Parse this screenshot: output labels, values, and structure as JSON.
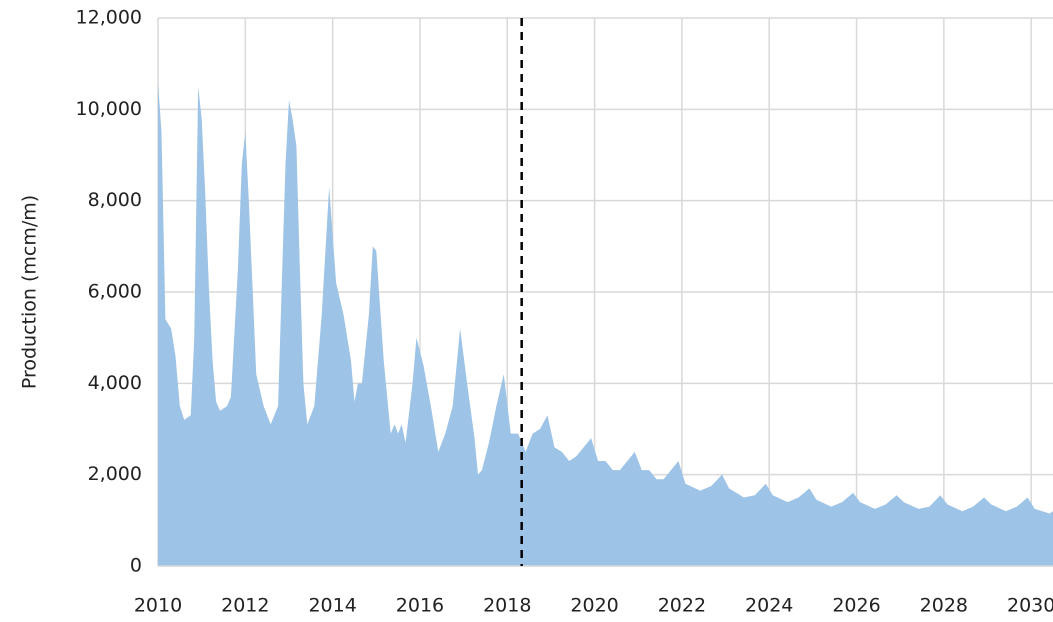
{
  "chart_data": {
    "type": "area",
    "y_label": "Production (mcm/m)",
    "x": [
      2010.0,
      2010.08,
      2010.17,
      2010.3,
      2010.4,
      2010.5,
      2010.6,
      2010.75,
      2010.83,
      2010.92,
      2011.0,
      2011.08,
      2011.17,
      2011.25,
      2011.33,
      2011.42,
      2011.58,
      2011.67,
      2011.83,
      2011.92,
      2012.0,
      2012.08,
      2012.17,
      2012.25,
      2012.42,
      2012.58,
      2012.75,
      2012.83,
      2012.92,
      2013.0,
      2013.08,
      2013.17,
      2013.25,
      2013.33,
      2013.42,
      2013.58,
      2013.75,
      2013.92,
      2014.08,
      2014.25,
      2014.42,
      2014.5,
      2014.58,
      2014.67,
      2014.83,
      2014.92,
      2015.0,
      2015.17,
      2015.33,
      2015.42,
      2015.5,
      2015.58,
      2015.67,
      2015.83,
      2015.92,
      2016.08,
      2016.25,
      2016.42,
      2016.58,
      2016.75,
      2016.92,
      2017.08,
      2017.25,
      2017.33,
      2017.42,
      2017.58,
      2017.75,
      2017.92,
      2018.08,
      2018.25,
      2018.42,
      2018.58,
      2018.75,
      2018.92,
      2019.08,
      2019.25,
      2019.42,
      2019.58,
      2019.75,
      2019.92,
      2020.08,
      2020.25,
      2020.42,
      2020.58,
      2020.75,
      2020.92,
      2021.08,
      2021.25,
      2021.42,
      2021.58,
      2021.75,
      2021.92,
      2022.08,
      2022.42,
      2022.67,
      2022.92,
      2023.08,
      2023.42,
      2023.67,
      2023.92,
      2024.08,
      2024.42,
      2024.67,
      2024.92,
      2025.08,
      2025.42,
      2025.67,
      2025.92,
      2026.08,
      2026.42,
      2026.67,
      2026.92,
      2027.08,
      2027.42,
      2027.67,
      2027.92,
      2028.08,
      2028.42,
      2028.67,
      2028.92,
      2029.08,
      2029.42,
      2029.67,
      2029.92,
      2030.08,
      2030.42,
      2030.5
    ],
    "values": [
      10600,
      9500,
      5400,
      5200,
      4600,
      3500,
      3200,
      3300,
      5000,
      10500,
      9800,
      8200,
      6000,
      4500,
      3600,
      3400,
      3500,
      3700,
      6500,
      8800,
      9500,
      8000,
      6000,
      4200,
      3500,
      3100,
      3500,
      6000,
      8800,
      10200,
      9800,
      9200,
      6500,
      4000,
      3100,
      3500,
      5500,
      8300,
      6200,
      5500,
      4500,
      3600,
      4000,
      4000,
      5500,
      7000,
      6900,
      4500,
      2900,
      3100,
      2900,
      3100,
      2700,
      4000,
      5000,
      4400,
      3500,
      2500,
      2900,
      3500,
      5200,
      4000,
      2800,
      2000,
      2100,
      2700,
      3500,
      4200,
      2900,
      2900,
      2500,
      2900,
      3000,
      3300,
      2600,
      2500,
      2300,
      2400,
      2600,
      2800,
      2300,
      2300,
      2100,
      2100,
      2300,
      2500,
      2100,
      2100,
      1900,
      1900,
      2100,
      2300,
      1800,
      1650,
      1750,
      2000,
      1700,
      1500,
      1550,
      1800,
      1550,
      1400,
      1500,
      1700,
      1450,
      1300,
      1400,
      1600,
      1400,
      1250,
      1350,
      1550,
      1400,
      1250,
      1300,
      1550,
      1350,
      1200,
      1300,
      1500,
      1350,
      1200,
      1300,
      1500,
      1250,
      1150,
      1200
    ],
    "color": "#9dc3e6",
    "vline": 2018.33,
    "xlim": [
      2010,
      2030.5
    ],
    "xticks": [
      2010,
      2012,
      2014,
      2016,
      2018,
      2020,
      2022,
      2024,
      2026,
      2028,
      2030
    ],
    "ylim": [
      0,
      12000
    ],
    "yticks": [
      0,
      {
        "value": 2000,
        "label": "2,000"
      },
      {
        "value": 4000,
        "label": "4,000"
      },
      {
        "value": 6000,
        "label": "6,000"
      },
      {
        "value": 8000,
        "label": "8,000"
      },
      {
        "value": 10000,
        "label": "10,000"
      },
      {
        "value": 12000,
        "label": "12,000"
      }
    ],
    "grid": true
  }
}
